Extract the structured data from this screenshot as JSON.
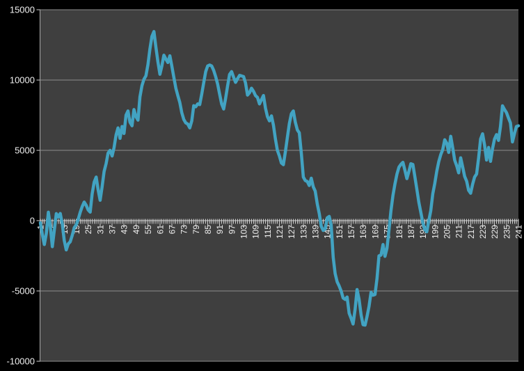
{
  "chart_data": {
    "type": "line",
    "title": "",
    "xlabel": "",
    "ylabel": "",
    "legend": "none",
    "grid": true,
    "x_start": 1,
    "x_end": 241,
    "x_labeled_ticks": [
      1,
      7,
      13,
      19,
      25,
      31,
      37,
      43,
      49,
      55,
      61,
      67,
      73,
      79,
      85,
      91,
      97,
      103,
      109,
      115,
      121,
      127,
      133,
      139,
      145,
      151,
      157,
      163,
      169,
      175,
      181,
      187,
      193,
      199,
      205,
      211,
      217,
      223,
      229,
      235,
      241
    ],
    "y_ticks": [
      -10000,
      -5000,
      0,
      5000,
      10000,
      15000
    ],
    "ylim": [
      -10000,
      15000
    ],
    "series": [
      {
        "values": [
          -150,
          -1000,
          -1700,
          -900,
          600,
          -400,
          -1850,
          -700,
          500,
          260,
          510,
          -230,
          -1400,
          -2080,
          -1650,
          -1500,
          -1050,
          -500,
          -300,
          100,
          600,
          1000,
          1320,
          1100,
          760,
          610,
          1900,
          2740,
          3100,
          2200,
          1450,
          2400,
          3500,
          4060,
          4800,
          5000,
          4600,
          5200,
          6100,
          6600,
          5850,
          6700,
          6200,
          7500,
          7800,
          7000,
          6750,
          7900,
          7400,
          7150,
          8800,
          9600,
          10050,
          10300,
          11100,
          12200,
          13100,
          13450,
          12350,
          11300,
          10410,
          11000,
          11765,
          11500,
          11250,
          11730,
          11000,
          10200,
          9420,
          8900,
          8400,
          7690,
          7200,
          6950,
          6870,
          6600,
          7100,
          8180,
          8100,
          8300,
          8250,
          9000,
          9800,
          10600,
          11000,
          11070,
          11000,
          10700,
          10250,
          9700,
          9000,
          8300,
          7940,
          8700,
          9600,
          10400,
          10600,
          10200,
          9835,
          10100,
          10330,
          10290,
          10250,
          9800,
          8930,
          9100,
          9420,
          9200,
          8900,
          8760,
          8300,
          8600,
          8900,
          8000,
          7400,
          7100,
          7450,
          6800,
          5800,
          5000,
          4600,
          4100,
          3980,
          4900,
          5900,
          6900,
          7600,
          7800,
          7000,
          6450,
          6250,
          4800,
          3100,
          2850,
          2780,
          2500,
          3020,
          2400,
          2100,
          1200,
          500,
          -400,
          -700,
          -600,
          200,
          300,
          -300,
          -2600,
          -3760,
          -4350,
          -4650,
          -5000,
          -5500,
          -5600,
          -5430,
          -6580,
          -6950,
          -7350,
          -6300,
          -4900,
          -5600,
          -6700,
          -7400,
          -7430,
          -6800,
          -6100,
          -5100,
          -5300,
          -5250,
          -4100,
          -2500,
          -2450,
          -1700,
          -2540,
          -1960,
          -700,
          700,
          1800,
          2600,
          3300,
          3800,
          4000,
          4150,
          3600,
          2990,
          3500,
          4050,
          4000,
          3150,
          2240,
          1300,
          600,
          -150,
          -650,
          -790,
          0,
          700,
          1900,
          2650,
          3500,
          4200,
          4700,
          5050,
          5750,
          5500,
          4850,
          6000,
          5200,
          4300,
          3900,
          3400,
          4470,
          3810,
          3150,
          2800,
          2160,
          1950,
          2600,
          3100,
          3320,
          4470,
          5800,
          6180,
          5380,
          4310,
          5210,
          4220,
          5130,
          5800,
          6120,
          5710,
          6700,
          8170,
          7900,
          7690,
          7300,
          6950,
          5600,
          6200,
          6700,
          6750
        ]
      }
    ],
    "colors": {
      "line": "#42A3C2",
      "plot_bg": "#3F3F3F",
      "page_bg": "#000000",
      "gridline": "#8C8C8C",
      "zero_axis": "#D6D6D6",
      "axis_line": "#ABABAB",
      "tick": "#CFCFCF",
      "label_text": "#F0F0F0"
    }
  }
}
